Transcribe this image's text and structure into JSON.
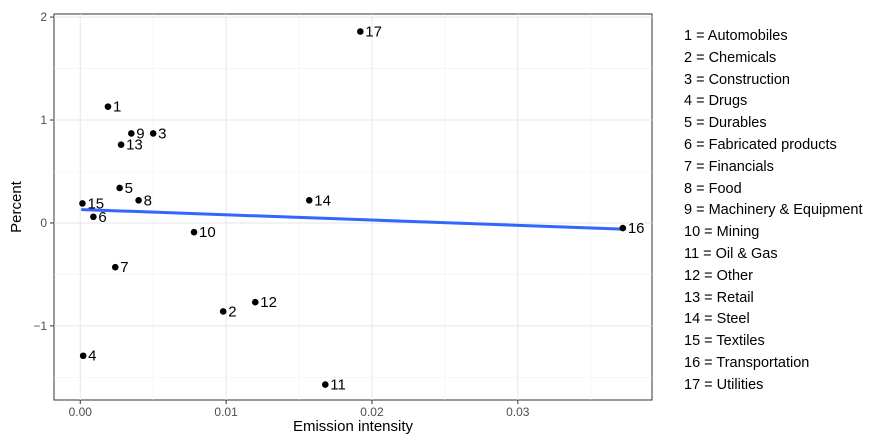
{
  "chart_data": {
    "type": "scatter",
    "title": "",
    "xlabel": "Emission intensity",
    "ylabel": "Percent",
    "xlim": [
      -0.0018,
      0.0392
    ],
    "ylim": [
      -1.72,
      2.03
    ],
    "x_ticks": [
      0.0,
      0.01,
      0.02,
      0.03
    ],
    "x_tick_labels": [
      "0.00",
      "0.01",
      "0.02",
      "0.03"
    ],
    "y_ticks": [
      -1,
      0,
      1,
      2
    ],
    "y_tick_labels": [
      "−1",
      "0",
      "1",
      "2"
    ],
    "grid": true,
    "points": [
      {
        "label": "1",
        "x": 0.0019,
        "y": 1.13
      },
      {
        "label": "2",
        "x": 0.0098,
        "y": -0.86
      },
      {
        "label": "3",
        "x": 0.005,
        "y": 0.87
      },
      {
        "label": "4",
        "x": 0.0002,
        "y": -1.29
      },
      {
        "label": "5",
        "x": 0.0027,
        "y": 0.34
      },
      {
        "label": "6",
        "x": 0.0009,
        "y": 0.06
      },
      {
        "label": "7",
        "x": 0.0024,
        "y": -0.43
      },
      {
        "label": "8",
        "x": 0.004,
        "y": 0.22
      },
      {
        "label": "9",
        "x": 0.0035,
        "y": 0.87
      },
      {
        "label": "10",
        "x": 0.0078,
        "y": -0.09
      },
      {
        "label": "11",
        "x": 0.0168,
        "y": -1.57
      },
      {
        "label": "12",
        "x": 0.012,
        "y": -0.77
      },
      {
        "label": "13",
        "x": 0.0028,
        "y": 0.76
      },
      {
        "label": "14",
        "x": 0.0157,
        "y": 0.22
      },
      {
        "label": "15",
        "x": 0.00015,
        "y": 0.19
      },
      {
        "label": "16",
        "x": 0.0372,
        "y": -0.05
      },
      {
        "label": "17",
        "x": 0.0192,
        "y": 1.86
      }
    ],
    "trend_line": {
      "x": [
        0.00015,
        0.0372
      ],
      "y": [
        0.13,
        -0.06
      ],
      "color": "#3366ff"
    },
    "point_color": "#000000",
    "legend": {
      "position": "right",
      "entries": [
        "1 = Automobiles",
        "2 = Chemicals",
        "3 = Construction",
        "4 = Drugs",
        "5 = Durables",
        "6 = Fabricated products",
        "7 = Financials",
        "8 = Food",
        "9 = Machinery & Equipment",
        "10 = Mining",
        "11 = Oil & Gas",
        "12 = Other",
        "13 = Retail",
        "14 = Steel",
        "15 = Textiles",
        "16 = Transportation",
        "17 = Utilities"
      ]
    }
  }
}
